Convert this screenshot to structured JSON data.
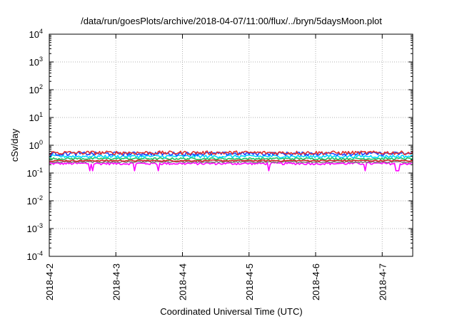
{
  "chart_data": {
    "type": "line",
    "title": "/data/run/goesPlots/archive/2018-04-07/11:00/flux/../bryn/5daysMoon.plot",
    "xlabel": "Coordinated Universal Time (UTC)",
    "ylabel": "cSv/day",
    "x_ticks": [
      "2018-4-2",
      "2018-4-3",
      "2018-4-4",
      "2018-4-5",
      "2018-4-6",
      "2018-4-7"
    ],
    "x_range": [
      "2018-04-02T00:00",
      "2018-04-07T11:00"
    ],
    "y_scale": "log",
    "ylim": [
      0.0001,
      10000
    ],
    "y_ticks": [
      {
        "base": "10",
        "exp": "-4"
      },
      {
        "base": "10",
        "exp": "-3"
      },
      {
        "base": "10",
        "exp": "-2"
      },
      {
        "base": "10",
        "exp": "-1"
      },
      {
        "base": "10",
        "exp": "0"
      },
      {
        "base": "10",
        "exp": "1"
      },
      {
        "base": "10",
        "exp": "2"
      },
      {
        "base": "10",
        "exp": "3"
      },
      {
        "base": "10",
        "exp": "4"
      }
    ],
    "grid": true,
    "series": [
      {
        "color": "#ff00ff",
        "level": 0.22,
        "noise": 0.1,
        "dips": true
      },
      {
        "color": "#808080",
        "level": 0.25,
        "noise": 0.06,
        "dips": false
      },
      {
        "color": "#d02020",
        "level": 0.28,
        "noise": 0.06,
        "dips": false
      },
      {
        "color": "#20c060",
        "level": 0.33,
        "noise": 0.08,
        "dips": false
      },
      {
        "color": "#00d8ff",
        "level": 0.4,
        "noise": 0.12,
        "dips": false
      },
      {
        "color": "#2040ff",
        "level": 0.5,
        "noise": 0.15,
        "dips": false
      },
      {
        "color": "#e03030",
        "level": 0.54,
        "noise": 0.15,
        "dips": false
      }
    ]
  }
}
